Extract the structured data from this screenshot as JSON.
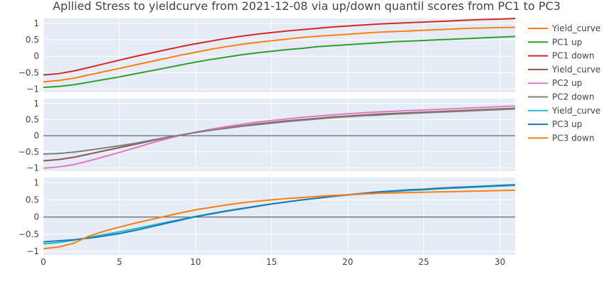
{
  "chart_data": {
    "type": "line",
    "title": "Apllied Stress to yieldcurve from 2021-12-08 via up/down quantil scores from PC1 to PC3",
    "xlabel": "",
    "ylabel": "",
    "xlim": [
      0,
      31
    ],
    "x_ticks": [
      0,
      5,
      10,
      15,
      20,
      25,
      30
    ],
    "grid": true,
    "legend_position": "right",
    "x": [
      0,
      1,
      2,
      3,
      4,
      5,
      6,
      7,
      8,
      9,
      10,
      11,
      12,
      13,
      14,
      15,
      16,
      17,
      18,
      19,
      20,
      21,
      22,
      23,
      24,
      25,
      26,
      27,
      28,
      29,
      30,
      31
    ],
    "panels": [
      {
        "ylim": [
          -1.1,
          1.15
        ],
        "y_ticks": [
          1,
          0.5,
          0,
          -0.5,
          -1
        ],
        "y_tick_labels": [
          "1",
          "0.5",
          "0",
          "−0.5",
          "−1"
        ],
        "zero_line": false,
        "series": [
          {
            "name": "Yield_curve",
            "color": "#ff7f0e",
            "values": [
              -0.78,
              -0.74,
              -0.67,
              -0.57,
              -0.47,
              -0.37,
              -0.27,
              -0.17,
              -0.07,
              0.03,
              0.12,
              0.21,
              0.29,
              0.36,
              0.42,
              0.47,
              0.52,
              0.57,
              0.61,
              0.64,
              0.67,
              0.7,
              0.73,
              0.75,
              0.77,
              0.79,
              0.81,
              0.83,
              0.85,
              0.86,
              0.87,
              0.88
            ]
          },
          {
            "name": "PC1 up",
            "color": "#2ca02c",
            "values": [
              -0.95,
              -0.92,
              -0.87,
              -0.79,
              -0.71,
              -0.63,
              -0.54,
              -0.45,
              -0.36,
              -0.27,
              -0.18,
              -0.1,
              -0.03,
              0.04,
              0.1,
              0.15,
              0.2,
              0.24,
              0.29,
              0.32,
              0.35,
              0.38,
              0.41,
              0.44,
              0.46,
              0.48,
              0.5,
              0.52,
              0.54,
              0.56,
              0.58,
              0.6
            ]
          },
          {
            "name": "PC1 down",
            "color": "#d62728",
            "values": [
              -0.57,
              -0.53,
              -0.45,
              -0.34,
              -0.23,
              -0.12,
              -0.01,
              0.09,
              0.19,
              0.29,
              0.38,
              0.46,
              0.54,
              0.61,
              0.67,
              0.72,
              0.77,
              0.81,
              0.85,
              0.89,
              0.92,
              0.95,
              0.98,
              1.0,
              1.02,
              1.04,
              1.06,
              1.08,
              1.1,
              1.12,
              1.13,
              1.15
            ]
          }
        ]
      },
      {
        "ylim": [
          -1.1,
          1.15
        ],
        "y_ticks": [
          1,
          0.5,
          0,
          -0.5,
          -1
        ],
        "y_tick_labels": [
          "1",
          "0.5",
          "0",
          "−0.5",
          "−1"
        ],
        "zero_line": true,
        "series": [
          {
            "name": "Yield_curve",
            "color": "#8c564b",
            "values": [
              -0.78,
              -0.74,
              -0.67,
              -0.57,
              -0.47,
              -0.37,
              -0.27,
              -0.17,
              -0.07,
              0.02,
              0.1,
              0.17,
              0.24,
              0.3,
              0.36,
              0.41,
              0.46,
              0.5,
              0.54,
              0.58,
              0.61,
              0.64,
              0.67,
              0.69,
              0.71,
              0.73,
              0.75,
              0.77,
              0.79,
              0.81,
              0.83,
              0.85
            ]
          },
          {
            "name": "PC2 up",
            "color": "#e377c2",
            "values": [
              -1.01,
              -0.97,
              -0.9,
              -0.78,
              -0.65,
              -0.52,
              -0.38,
              -0.24,
              -0.11,
              0.01,
              0.11,
              0.2,
              0.28,
              0.35,
              0.42,
              0.47,
              0.52,
              0.57,
              0.61,
              0.65,
              0.68,
              0.71,
              0.74,
              0.76,
              0.78,
              0.8,
              0.82,
              0.84,
              0.86,
              0.88,
              0.9,
              0.92
            ]
          },
          {
            "name": "PC2 down",
            "color": "#7f7f7f",
            "values": [
              -0.57,
              -0.55,
              -0.51,
              -0.45,
              -0.38,
              -0.31,
              -0.24,
              -0.15,
              -0.06,
              0.02,
              0.1,
              0.17,
              0.23,
              0.29,
              0.34,
              0.39,
              0.44,
              0.48,
              0.52,
              0.56,
              0.59,
              0.62,
              0.64,
              0.67,
              0.69,
              0.71,
              0.73,
              0.75,
              0.77,
              0.79,
              0.81,
              0.83
            ]
          }
        ]
      },
      {
        "ylim": [
          -1.1,
          1.15
        ],
        "y_ticks": [
          1,
          0.5,
          0,
          -0.5,
          -1
        ],
        "y_tick_labels": [
          "1",
          "0.5",
          "0",
          "−0.5",
          "−1"
        ],
        "zero_line": true,
        "series": [
          {
            "name": "Yield_curve",
            "color": "#17becf",
            "values": [
              -0.78,
              -0.74,
              -0.67,
              -0.59,
              -0.51,
              -0.43,
              -0.34,
              -0.25,
              -0.16,
              -0.07,
              0.02,
              0.1,
              0.18,
              0.25,
              0.32,
              0.38,
              0.44,
              0.5,
              0.55,
              0.6,
              0.64,
              0.68,
              0.71,
              0.74,
              0.77,
              0.79,
              0.82,
              0.84,
              0.86,
              0.88,
              0.9,
              0.92
            ]
          },
          {
            "name": "PC3 up",
            "color": "#1f77b4",
            "values": [
              -0.72,
              -0.69,
              -0.66,
              -0.61,
              -0.55,
              -0.48,
              -0.39,
              -0.29,
              -0.19,
              -0.09,
              0.01,
              0.09,
              0.17,
              0.24,
              0.31,
              0.38,
              0.44,
              0.5,
              0.55,
              0.6,
              0.65,
              0.69,
              0.73,
              0.76,
              0.79,
              0.81,
              0.84,
              0.86,
              0.88,
              0.9,
              0.92,
              0.94
            ]
          },
          {
            "name": "PC3 down",
            "color": "#ff7f0e",
            "values": [
              -0.92,
              -0.87,
              -0.76,
              -0.55,
              -0.41,
              -0.29,
              -0.18,
              -0.08,
              0.02,
              0.12,
              0.21,
              0.28,
              0.35,
              0.41,
              0.46,
              0.5,
              0.54,
              0.57,
              0.6,
              0.63,
              0.65,
              0.67,
              0.69,
              0.7,
              0.71,
              0.72,
              0.73,
              0.74,
              0.75,
              0.76,
              0.77,
              0.78
            ]
          }
        ]
      }
    ]
  }
}
